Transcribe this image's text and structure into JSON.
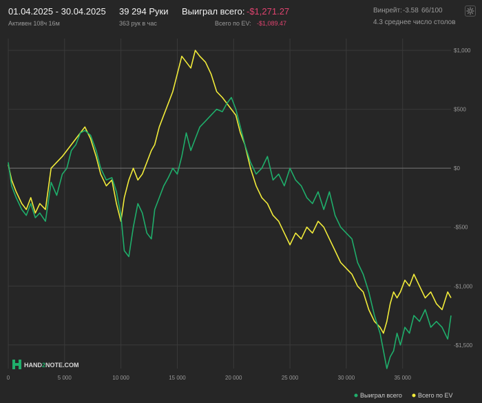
{
  "header": {
    "date_range": "01.04.2025 - 30.04.2025",
    "active": "Активен 108ч 16м",
    "hands": "39 294 Руки",
    "hands_per_hour": "363 рук в час",
    "won_label": "Выиграл всего:",
    "won_value": "-$1,271.27",
    "ev_label": "Всего по EV:",
    "ev_value": "-$1,089.47",
    "winrate_label": "Винрейт:",
    "winrate_value": "-3.58",
    "winrate_hands": "66/100",
    "avg_tables": "4.3 среднее число столов",
    "gear_icon": "gear-icon"
  },
  "logo": {
    "text_a": "HAND",
    "text_b": "2",
    "text_c": "NOTE.COM"
  },
  "colors": {
    "won": "#1fae6b",
    "ev": "#f2ec3a",
    "neg": "#e0436f",
    "grid": "#3a3a3a",
    "zero": "#7a7a7a"
  },
  "chart_data": {
    "type": "line",
    "xlim": [
      0,
      39294
    ],
    "ylim": [
      -1700,
      1100
    ],
    "x_ticks": [
      0,
      5000,
      10000,
      15000,
      20000,
      25000,
      30000,
      35000
    ],
    "x_tick_labels": [
      "0",
      "5 000",
      "10 000",
      "15 000",
      "20 000",
      "25 000",
      "30 000",
      "35 000"
    ],
    "y_ticks": [
      1000,
      500,
      0,
      -500,
      -1000,
      -1500
    ],
    "y_tick_labels": [
      "$1,000",
      "$500",
      "$0",
      "-$500",
      "-$1,000",
      "-$1,500"
    ],
    "grid": true,
    "legend": "bottom-right",
    "series": [
      {
        "name": "Выиграл всего",
        "color": "#1fae6b",
        "x": [
          0,
          300,
          700,
          1200,
          1600,
          2000,
          2400,
          2800,
          3300,
          3800,
          4300,
          4800,
          5200,
          5600,
          6000,
          6400,
          6800,
          7300,
          7800,
          8200,
          8700,
          9200,
          9600,
          10000,
          10300,
          10700,
          11100,
          11500,
          11900,
          12300,
          12700,
          13000,
          13400,
          13800,
          14200,
          14600,
          15000,
          15400,
          15800,
          16200,
          16600,
          17000,
          17500,
          18000,
          18500,
          19000,
          19400,
          19800,
          20200,
          20600,
          21000,
          21500,
          22000,
          22500,
          23000,
          23500,
          24000,
          24500,
          25000,
          25500,
          26000,
          26500,
          27000,
          27500,
          28000,
          28500,
          29000,
          29500,
          30000,
          30500,
          31000,
          31500,
          32000,
          32500,
          33000,
          33300,
          33600,
          33900,
          34200,
          34500,
          34800,
          35200,
          35600,
          36000,
          36500,
          37000,
          37500,
          38000,
          38500,
          39000,
          39294
        ],
        "y": [
          50,
          -150,
          -250,
          -350,
          -400,
          -300,
          -420,
          -380,
          -450,
          -120,
          -230,
          -50,
          0,
          150,
          200,
          300,
          320,
          280,
          150,
          0,
          -100,
          -80,
          -200,
          -400,
          -700,
          -750,
          -500,
          -300,
          -380,
          -550,
          -600,
          -350,
          -250,
          -150,
          -80,
          0,
          -50,
          100,
          300,
          150,
          250,
          350,
          400,
          450,
          500,
          480,
          550,
          600,
          500,
          350,
          200,
          50,
          -50,
          0,
          100,
          -100,
          -50,
          -150,
          0,
          -100,
          -150,
          -250,
          -300,
          -200,
          -350,
          -200,
          -400,
          -500,
          -550,
          -600,
          -800,
          -900,
          -1050,
          -1250,
          -1400,
          -1550,
          -1700,
          -1600,
          -1550,
          -1400,
          -1500,
          -1350,
          -1400,
          -1250,
          -1300,
          -1200,
          -1350,
          -1300,
          -1350,
          -1450,
          -1250
        ]
      },
      {
        "name": "Всего по EV",
        "color": "#f2ec3a",
        "x": [
          0,
          300,
          700,
          1200,
          1600,
          2000,
          2400,
          2800,
          3300,
          3800,
          4300,
          4800,
          5200,
          5600,
          6000,
          6400,
          6800,
          7300,
          7800,
          8200,
          8700,
          9200,
          9600,
          10000,
          10300,
          10700,
          11100,
          11500,
          11900,
          12300,
          12700,
          13000,
          13400,
          13800,
          14200,
          14600,
          15000,
          15400,
          15800,
          16200,
          16600,
          17000,
          17500,
          18000,
          18500,
          19000,
          19400,
          19800,
          20200,
          20600,
          21000,
          21500,
          22000,
          22500,
          23000,
          23500,
          24000,
          24500,
          25000,
          25500,
          26000,
          26500,
          27000,
          27500,
          28000,
          28500,
          29000,
          29500,
          30000,
          30500,
          31000,
          31500,
          32000,
          32500,
          33000,
          33300,
          33600,
          33900,
          34200,
          34500,
          34800,
          35200,
          35600,
          36000,
          36500,
          37000,
          37500,
          38000,
          38500,
          39000,
          39294
        ],
        "y": [
          30,
          -100,
          -200,
          -300,
          -350,
          -250,
          -380,
          -300,
          -350,
          0,
          50,
          100,
          150,
          200,
          250,
          300,
          350,
          250,
          100,
          -50,
          -150,
          -100,
          -300,
          -450,
          -250,
          -100,
          0,
          -100,
          -50,
          50,
          150,
          200,
          350,
          450,
          550,
          650,
          800,
          950,
          900,
          850,
          1000,
          950,
          900,
          800,
          650,
          600,
          550,
          500,
          450,
          300,
          200,
          0,
          -150,
          -250,
          -300,
          -400,
          -450,
          -550,
          -650,
          -550,
          -600,
          -500,
          -550,
          -450,
          -500,
          -600,
          -700,
          -800,
          -850,
          -900,
          -1000,
          -1050,
          -1200,
          -1300,
          -1350,
          -1400,
          -1300,
          -1150,
          -1050,
          -1100,
          -1050,
          -950,
          -1000,
          -900,
          -1000,
          -1100,
          -1050,
          -1150,
          -1200,
          -1050,
          -1100
        ]
      }
    ]
  }
}
